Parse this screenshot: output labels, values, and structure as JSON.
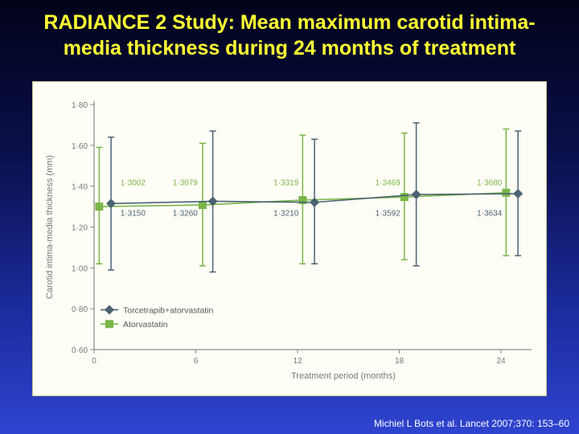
{
  "title": "RADIANCE 2 Study: Mean maximum carotid intima-media thickness during 24 months of treatment",
  "title_lines": [
    "RADIANCE 2 Study: Mean maximum carotid intima-",
    "media thickness during 24 months of treatment"
  ],
  "citation": "Michiel L Bots et al. Lancet 2007;370: 153–60",
  "colors": {
    "title": "#ffff33",
    "torcetrapib": "#4a6272",
    "atorvastatin": "#7ab648",
    "axis": "#8a8a8a",
    "label": "#8a8a8a"
  },
  "chart_data": {
    "type": "line",
    "xlabel": "Treatment period (months)",
    "ylabel": "Carotid intima-media thickness (mm)",
    "x_ticks": [
      0,
      6,
      12,
      18,
      24
    ],
    "x_tick_labels": [
      "0",
      "6",
      "12",
      "18",
      "24"
    ],
    "y_ticks": [
      0.6,
      0.8,
      1.0,
      1.2,
      1.4,
      1.6,
      1.8
    ],
    "y_tick_labels": [
      "0·60",
      "0·80",
      "1·00",
      "1·20",
      "1·40",
      "1·60",
      "1·80"
    ],
    "xlim": [
      0,
      25.8
    ],
    "ylim": [
      0.6,
      1.8
    ],
    "legend_position": "bottom-left",
    "series": [
      {
        "name": "Torcetrapib+atorvastatin",
        "marker": "diamond",
        "x": [
          1,
          7,
          13,
          19,
          25
        ],
        "y": [
          1.315,
          1.326,
          1.321,
          1.3592,
          1.3634
        ],
        "err_low": [
          0.99,
          0.98,
          1.02,
          1.01,
          1.06
        ],
        "err_high": [
          1.64,
          1.67,
          1.63,
          1.71,
          1.67
        ],
        "value_labels": [
          "1·3150",
          "1·3260",
          "1·3210",
          "1·3592",
          "1·3634"
        ],
        "label_position": "below"
      },
      {
        "name": "Atorvastatin",
        "marker": "square",
        "x": [
          0.3,
          6.4,
          12.3,
          18.3,
          24.3
        ],
        "y": [
          1.3002,
          1.3079,
          1.3319,
          1.3469,
          1.368
        ],
        "err_low": [
          1.02,
          1.01,
          1.02,
          1.04,
          1.06
        ],
        "err_high": [
          1.59,
          1.61,
          1.65,
          1.66,
          1.68
        ],
        "value_labels": [
          "1·3002",
          "1·3079",
          "1·3319",
          "1·3469",
          "1·3680"
        ],
        "label_position": "above"
      }
    ]
  }
}
